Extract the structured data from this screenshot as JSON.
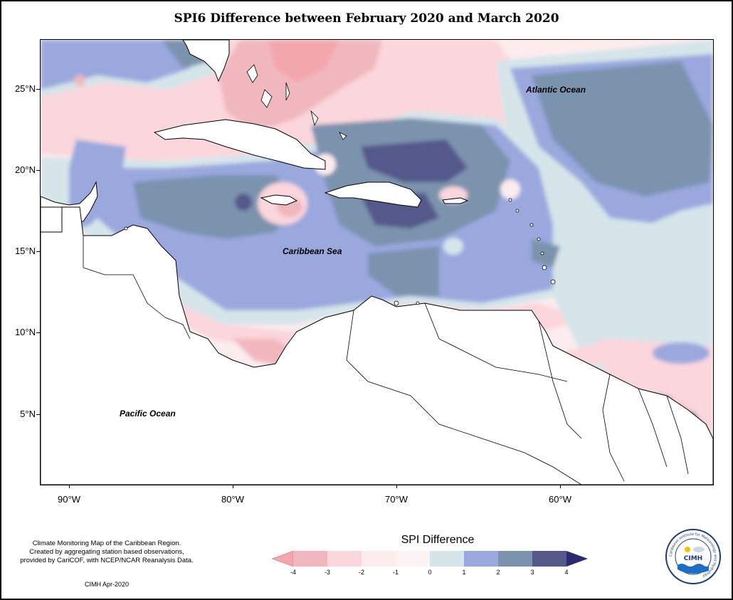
{
  "title": "SPI6 Difference between February 2020 and March 2020",
  "map": {
    "lat_ticks": [
      "25°N",
      "20°N",
      "15°N",
      "10°N",
      "5°N"
    ],
    "lon_ticks": [
      "90°W",
      "80°W",
      "70°W",
      "60°W"
    ],
    "ocean_labels": {
      "atlantic": "Atlantic Ocean",
      "caribbean": "Caribbean Sea",
      "pacific": "Pacific Ocean"
    }
  },
  "legend": {
    "title": "SPI Difference",
    "ticks": [
      "-4",
      "-3",
      "-2",
      "-1",
      "0",
      "1",
      "2",
      "3",
      "4"
    ],
    "colors": [
      "#f4a6ad",
      "#f0b8be",
      "#fbd6dc",
      "#fcecee",
      "#d5e5ea",
      "#9aa8de",
      "#7b93ae",
      "#55598a",
      "#2b2a6e"
    ]
  },
  "credit": {
    "line1": "Climate Monitoring Map of the Caribbean Region.",
    "line2": "Created by aggregating station based observations,",
    "line3": "provided by CariCOF, with NCEP/NCAR Reanalysis Data.",
    "date": "CIMH Apr-2020"
  },
  "logo": {
    "abbr": "CIMH",
    "ring_text": "Caribbean Institute for Meteorology and Hydrology"
  }
}
